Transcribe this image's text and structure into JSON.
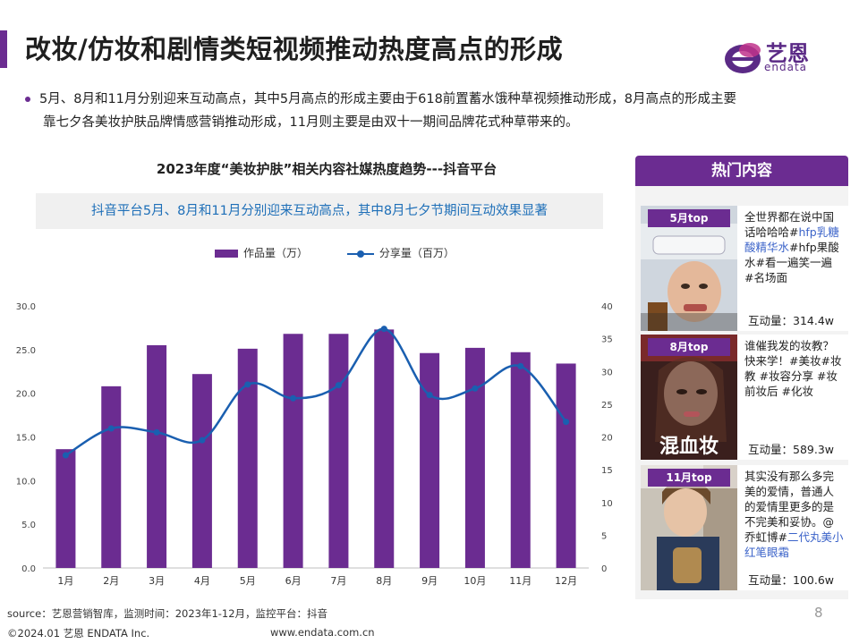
{
  "header": {
    "title": "改妆/仿妆和剧情类短视频推动热度高点的形成",
    "logo_cn": "艺恩",
    "logo_en": "endata"
  },
  "intro": {
    "line1": "5月、8月和11月分别迎来互动高点，其中5月高点的形成主要由于618前置蓄水饿种草视频推动形成，8月高点的形成主要",
    "line2": "靠七夕各美妆护肤品牌情感营销推动形成，11月则主要是由双十一期间品牌花式种草带来的。"
  },
  "chart_section": {
    "title": "2023年度“美妆护肤”相关内容社媒热度趋势---抖音平台",
    "subtitle": "抖音平台5月、8月和11月分别迎来互动高点，其中8月七夕节期间互动效果显著",
    "legend_bar": "作品量（万）",
    "legend_line": "分享量（百万）"
  },
  "chart_data": {
    "type": "bar+line",
    "categories": [
      "1月",
      "2月",
      "3月",
      "4月",
      "5月",
      "6月",
      "7月",
      "8月",
      "9月",
      "10月",
      "11月",
      "12月"
    ],
    "series": [
      {
        "name": "作品量（万）",
        "type": "bar",
        "axis": "left",
        "values": [
          13.6,
          20.8,
          25.5,
          22.2,
          25.1,
          26.8,
          26.8,
          27.3,
          24.6,
          25.2,
          24.7,
          23.4
        ],
        "color": "#6b2c91"
      },
      {
        "name": "分享量（百万）",
        "type": "line",
        "axis": "right",
        "values": [
          17.2,
          21.3,
          20.7,
          19.5,
          28.0,
          25.9,
          27.9,
          36.5,
          26.4,
          27.4,
          30.8,
          22.3
        ],
        "color": "#1a5fb0"
      }
    ],
    "ylim_left": [
      0,
      30
    ],
    "yticks_left": [
      "0.0",
      "5.0",
      "10.0",
      "15.0",
      "20.0",
      "25.0",
      "30.0"
    ],
    "ylim_right": [
      0,
      40
    ],
    "yticks_right": [
      "0",
      "5",
      "10",
      "15",
      "20",
      "25",
      "30",
      "35",
      "40"
    ],
    "grid": false,
    "legend_position": "top"
  },
  "hot_panel": {
    "header": "热门内容",
    "cards": [
      {
        "tag": "5月top",
        "desc": "全世界都在说中国话哈哈哈#",
        "desc_hl": "hfp乳糖酸精华水",
        "desc_tail": "#hfp果酸水#看一遍笑一遍 #名场面",
        "stat": "互动量：314.4w"
      },
      {
        "tag": "8月top",
        "desc": "谁催我发的妆教？快来学！#美妆#妆教 #妆容分享 #妆前妆后 #化妆",
        "desc_hl": "",
        "desc_tail": "",
        "stat": "互动量：589.3w",
        "thumb_text": "混血妆"
      },
      {
        "tag": "11月top",
        "desc": "其实没有那么多完美的爱情，普通人的爱情里更多的是不完美和妥协。@乔虹博#",
        "desc_hl": "二代丸美小红笔眼霜",
        "desc_tail": "",
        "stat": "互动量：100.6w"
      }
    ]
  },
  "footer": {
    "source": "source：艺恩营销智库，监测时间：2023年1-12月，监控平台：抖音",
    "copyright": "©2024.01  艺恩 ENDATA Inc.",
    "url": "www.endata.com.cn",
    "page": "8"
  }
}
